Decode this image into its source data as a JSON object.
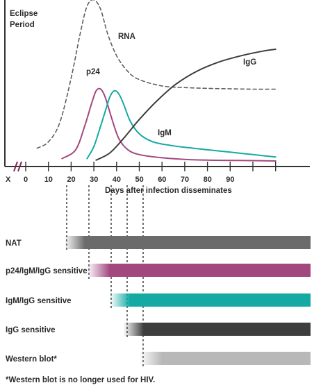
{
  "chart_data": {
    "type": "line",
    "annotations": {
      "eclipse": [
        "Eclipse",
        "Period"
      ],
      "rna": "RNA",
      "p24": "p24",
      "igm": "IgM",
      "igg": "IgG"
    },
    "xlabel": "Days after infection disseminates",
    "x_ticks": [
      "X",
      "0",
      "10",
      "20",
      "30",
      "40",
      "50",
      "60",
      "70",
      "80",
      "90"
    ],
    "axis_break": true,
    "xlim": [
      -10,
      112
    ],
    "series": [
      {
        "name": "RNA",
        "style": "dashed",
        "color": "#5f5f5f",
        "points": [
          [
            5,
            8
          ],
          [
            10,
            12
          ],
          [
            15,
            24
          ],
          [
            20,
            52
          ],
          [
            24,
            80
          ],
          [
            27,
            97
          ],
          [
            30,
            101
          ],
          [
            33,
            95
          ],
          [
            36,
            80
          ],
          [
            40,
            66
          ],
          [
            45,
            56
          ],
          [
            50,
            51
          ],
          [
            60,
            47
          ],
          [
            70,
            46
          ],
          [
            80,
            45.5
          ],
          [
            90,
            45.2
          ],
          [
            100,
            45
          ],
          [
            110,
            45
          ]
        ]
      },
      {
        "name": "p24",
        "style": "solid",
        "color": "#a3487f",
        "points": [
          [
            16,
            1.5
          ],
          [
            22,
            7
          ],
          [
            26,
            22
          ],
          [
            29,
            36
          ],
          [
            31,
            44
          ],
          [
            33,
            45
          ],
          [
            35,
            40
          ],
          [
            38,
            26
          ],
          [
            41,
            14
          ],
          [
            45,
            7
          ],
          [
            50,
            4
          ],
          [
            60,
            2
          ],
          [
            70,
            1
          ],
          [
            80,
            0.5
          ],
          [
            100,
            0.2
          ],
          [
            110,
            0
          ]
        ]
      },
      {
        "name": "IgM",
        "style": "solid",
        "color": "#14aaa3",
        "points": [
          [
            27,
            1.5
          ],
          [
            30,
            9
          ],
          [
            33,
            22
          ],
          [
            35,
            31
          ],
          [
            37,
            40
          ],
          [
            39,
            44
          ],
          [
            41,
            42
          ],
          [
            43,
            36
          ],
          [
            46,
            25
          ],
          [
            50,
            17
          ],
          [
            56,
            12
          ],
          [
            65,
            9.5
          ],
          [
            75,
            7.8
          ],
          [
            90,
            5.5
          ],
          [
            100,
            4
          ],
          [
            110,
            2.5
          ]
        ]
      },
      {
        "name": "IgG",
        "style": "solid",
        "color": "#3d3d3d",
        "points": [
          [
            31,
            0.5
          ],
          [
            37,
            5
          ],
          [
            43,
            14
          ],
          [
            50,
            26
          ],
          [
            58,
            38
          ],
          [
            66,
            48
          ],
          [
            75,
            56
          ],
          [
            85,
            62
          ],
          [
            95,
            66
          ],
          [
            105,
            69
          ],
          [
            110,
            70
          ]
        ]
      }
    ]
  },
  "assays": [
    {
      "label": "NAT",
      "color": "#6b6b6b",
      "start": 17,
      "full": 26
    },
    {
      "label": "p24/IgM/IgG sensitive",
      "color": "#a3487f",
      "start": 27,
      "full": 37
    },
    {
      "label": "IgM/IgG sensitive",
      "color": "#14aaa3",
      "start": 37,
      "full": 46
    },
    {
      "label": "IgG sensitive",
      "color": "#3d3d3d",
      "start": 43,
      "full": 52
    },
    {
      "label": "Western blot*",
      "color": "#b8b8b8",
      "start": 50,
      "full": 60
    }
  ],
  "footnote": "*Western blot is no longer used for HIV."
}
